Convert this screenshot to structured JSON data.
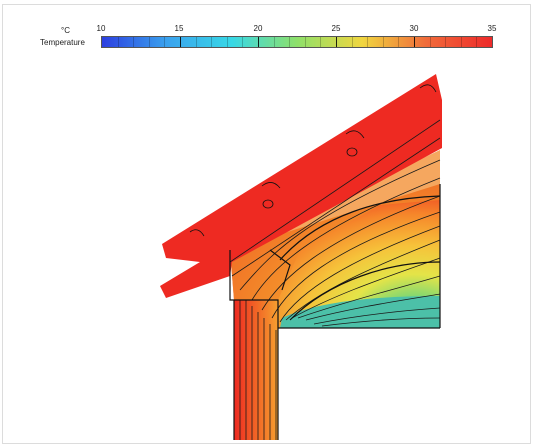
{
  "legend": {
    "unit": "°C",
    "label": "Temperature",
    "ticks": [
      "10",
      "15",
      "20",
      "25",
      "30",
      "35"
    ],
    "colors": [
      "#2c3fe0",
      "#3aa2ee",
      "#38d8e6",
      "#8ee06a",
      "#f0d640",
      "#f06a3a",
      "#ee2a2a"
    ]
  },
  "diagram": {
    "colors": {
      "hot": "#ee2a22",
      "warm": "#f6862a",
      "mild": "#f6c23a",
      "yellow": "#e4e448",
      "green": "#84d870",
      "cool": "#4cc0a8",
      "line": "#1a1a1a"
    }
  }
}
